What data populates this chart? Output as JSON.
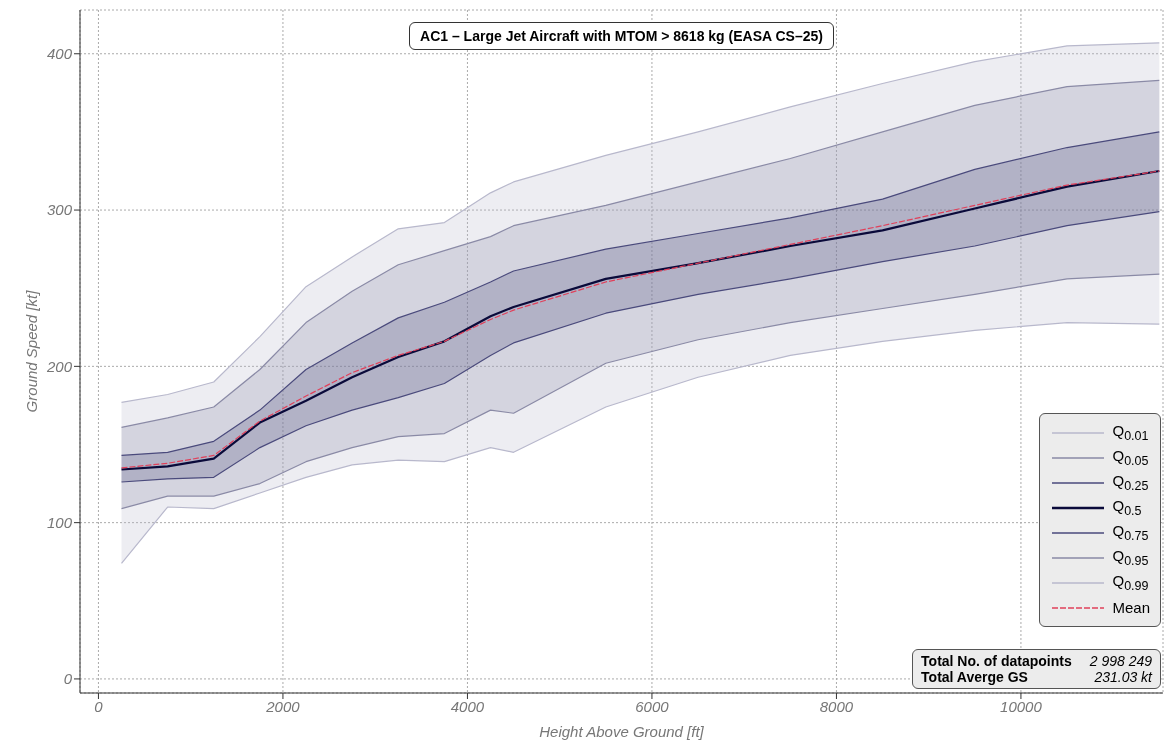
{
  "chart_data": {
    "type": "line",
    "title": "AC1 – Large Jet Aircraft with MTOM > 8618 kg (EASA CS–25)",
    "xlabel": "Height Above Ground [ft]",
    "ylabel": "Ground Speed [kt]",
    "x": [
      250,
      750,
      1250,
      1750,
      2250,
      2750,
      3250,
      3750,
      4250,
      4500,
      5500,
      6500,
      7500,
      8500,
      9500,
      10500,
      11500
    ],
    "series": [
      {
        "name": "Q$_{0.01}$",
        "color": "#b8b8cc",
        "values": [
          74,
          110,
          109,
          119,
          129,
          137,
          140,
          139,
          148,
          145,
          174,
          193,
          207,
          216,
          223,
          228,
          227
        ]
      },
      {
        "name": "Q$_{0.05}$",
        "color": "#8a8aa6",
        "values": [
          109,
          117,
          117,
          125,
          139,
          148,
          155,
          157,
          172,
          170,
          202,
          217,
          228,
          237,
          246,
          256,
          259
        ]
      },
      {
        "name": "Q$_{0.25}$",
        "color": "#4a4a7c",
        "values": [
          126,
          128,
          129,
          148,
          162,
          172,
          180,
          189,
          207,
          215,
          234,
          246,
          256,
          267,
          277,
          290,
          299
        ]
      },
      {
        "name": "Q$_{0.5}$",
        "color": "#0a0a3a",
        "values": [
          134,
          136,
          141,
          164,
          178,
          193,
          206,
          216,
          232,
          238,
          256,
          266,
          277,
          287,
          301,
          315,
          325
        ]
      },
      {
        "name": "Q$_{0.75}$",
        "color": "#4a4a7c",
        "values": [
          143,
          145,
          152,
          172,
          198,
          215,
          231,
          241,
          254,
          261,
          275,
          285,
          295,
          307,
          326,
          340,
          350
        ],
        "lower": [
          126,
          128,
          129,
          148,
          162,
          172,
          180,
          189,
          207,
          215,
          234,
          246,
          256,
          267,
          277,
          290,
          299
        ],
        "upper": [
          143,
          145,
          152,
          172,
          198,
          215,
          231,
          241,
          254,
          261,
          275,
          285,
          295,
          307,
          326,
          340,
          350
        ]
      },
      {
        "name": "Q$_{0.95}$",
        "color": "#8a8aa6",
        "values": [
          161,
          167,
          174,
          198,
          228,
          248,
          265,
          274,
          283,
          290,
          303,
          318,
          333,
          350,
          367,
          379,
          383
        ],
        "lower": [
          109,
          117,
          117,
          125,
          139,
          148,
          155,
          157,
          172,
          170,
          202,
          217,
          228,
          237,
          246,
          256,
          259
        ],
        "upper": [
          161,
          167,
          174,
          198,
          228,
          248,
          265,
          274,
          283,
          290,
          303,
          318,
          333,
          350,
          367,
          379,
          383
        ]
      },
      {
        "name": "Q$_{0.99}$",
        "color": "#b8b8cc",
        "values": [
          177,
          182,
          190,
          219,
          251,
          270,
          288,
          292,
          311,
          318,
          335,
          350,
          366,
          381,
          395,
          405,
          407
        ],
        "lower": [
          74,
          110,
          109,
          119,
          129,
          137,
          140,
          139,
          148,
          145,
          174,
          193,
          207,
          216,
          223,
          228,
          227
        ],
        "upper": [
          177,
          182,
          190,
          219,
          251,
          270,
          288,
          292,
          311,
          318,
          335,
          350,
          366,
          381,
          395,
          405,
          407
        ]
      },
      {
        "name": "Mean",
        "color": "#e0405a",
        "line_style": "dashed",
        "values": [
          135,
          138,
          143,
          165,
          181,
          196,
          207,
          216,
          230,
          236,
          254,
          266,
          278,
          290,
          303,
          316,
          325
        ]
      }
    ],
    "xlim": [
      -200,
      11540
    ],
    "ylim": [
      -9,
      428
    ],
    "xticks": [
      0,
      2000,
      4000,
      6000,
      8000,
      10000
    ],
    "yticks": [
      0,
      100,
      200,
      300,
      400
    ],
    "grid": true,
    "legend": "bottom right",
    "annotations": [
      "Total No. of datapoints",
      "2 998 249",
      "Total Averge GS",
      "231.03 kt"
    ]
  }
}
